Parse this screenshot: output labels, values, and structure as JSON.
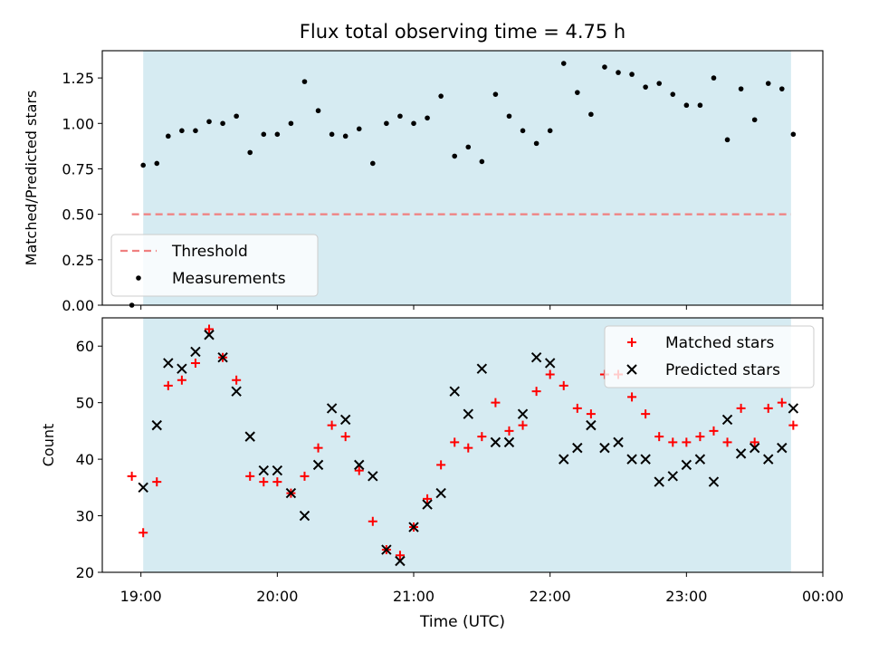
{
  "figure": {
    "title": "Flux total observing time = 4.75 h",
    "xlabel": "Time (UTC)"
  },
  "chart_data": [
    {
      "type": "scatter",
      "title": "Flux total observing time = 4.75 h",
      "xlabel": "",
      "ylabel": "Matched/Predicted stars",
      "xlim": [
        "18:43",
        "00:00"
      ],
      "ylim": [
        0,
        1.4
      ],
      "xticks": [
        "19:00",
        "20:00",
        "21:00",
        "22:00",
        "23:00",
        "00:00"
      ],
      "yticks": [
        "0.00",
        "0.25",
        "0.50",
        "0.75",
        "1.00",
        "1.25"
      ],
      "observing_window": [
        "19:01",
        "23:46"
      ],
      "legend_position": "lower-left",
      "series": [
        {
          "name": "Threshold",
          "style": "dashed-line",
          "color": "#f08080",
          "x": [
            "18:56",
            "23:46"
          ],
          "y": [
            0.5,
            0.5
          ]
        },
        {
          "name": "Measurements",
          "style": "dot",
          "color": "#000000",
          "x": [
            "18:56",
            "19:01",
            "19:07",
            "19:12",
            "19:18",
            "19:24",
            "19:30",
            "19:36",
            "19:42",
            "19:48",
            "19:54",
            "20:00",
            "20:06",
            "20:12",
            "20:18",
            "20:24",
            "20:30",
            "20:36",
            "20:42",
            "20:48",
            "20:54",
            "21:00",
            "21:06",
            "21:12",
            "21:18",
            "21:24",
            "21:30",
            "21:36",
            "21:42",
            "21:48",
            "21:54",
            "22:00",
            "22:06",
            "22:12",
            "22:18",
            "22:24",
            "22:30",
            "22:36",
            "22:42",
            "22:48",
            "22:54",
            "23:00",
            "23:06",
            "23:12",
            "23:18",
            "23:24",
            "23:30",
            "23:36",
            "23:42",
            "23:47"
          ],
          "y": [
            0.0,
            0.77,
            0.78,
            0.93,
            0.96,
            0.96,
            1.01,
            1.0,
            1.04,
            0.84,
            0.94,
            0.94,
            1.0,
            1.23,
            1.07,
            0.94,
            0.93,
            0.97,
            0.78,
            1.0,
            1.04,
            1.0,
            1.03,
            1.15,
            0.82,
            0.87,
            0.79,
            1.16,
            1.04,
            0.96,
            0.89,
            0.96,
            1.33,
            1.17,
            1.05,
            1.31,
            1.28,
            1.27,
            1.2,
            1.22,
            1.16,
            1.1,
            1.1,
            1.25,
            0.91,
            1.19,
            1.02,
            1.22,
            1.19,
            0.94
          ]
        }
      ]
    },
    {
      "type": "scatter",
      "title": "",
      "xlabel": "Time (UTC)",
      "ylabel": "Count",
      "xlim": [
        "18:43",
        "00:00"
      ],
      "ylim": [
        20,
        65
      ],
      "xticks": [
        "19:00",
        "20:00",
        "21:00",
        "22:00",
        "23:00",
        "00:00"
      ],
      "yticks": [
        "20",
        "30",
        "40",
        "50",
        "60"
      ],
      "observing_window": [
        "19:01",
        "23:46"
      ],
      "legend_position": "upper-right",
      "series": [
        {
          "name": "Matched stars",
          "marker": "plus",
          "color": "#ff0000",
          "x": [
            "18:56",
            "19:01",
            "19:07",
            "19:12",
            "19:18",
            "19:24",
            "19:30",
            "19:36",
            "19:42",
            "19:48",
            "19:54",
            "20:00",
            "20:06",
            "20:12",
            "20:18",
            "20:24",
            "20:30",
            "20:36",
            "20:42",
            "20:48",
            "20:54",
            "21:00",
            "21:06",
            "21:12",
            "21:18",
            "21:24",
            "21:30",
            "21:36",
            "21:42",
            "21:48",
            "21:54",
            "22:00",
            "22:06",
            "22:12",
            "22:18",
            "22:24",
            "22:30",
            "22:36",
            "22:42",
            "22:48",
            "22:54",
            "23:00",
            "23:06",
            "23:12",
            "23:18",
            "23:24",
            "23:30",
            "23:36",
            "23:42",
            "23:47"
          ],
          "y": [
            37,
            27,
            36,
            53,
            54,
            57,
            63,
            58,
            54,
            37,
            36,
            36,
            34,
            37,
            42,
            46,
            44,
            38,
            29,
            24,
            23,
            28,
            33,
            39,
            43,
            42,
            44,
            50,
            45,
            46,
            52,
            55,
            53,
            49,
            48,
            55,
            55,
            51,
            48,
            44,
            43,
            43,
            44,
            45,
            43,
            49,
            43,
            49,
            50,
            46
          ]
        },
        {
          "name": "Predicted stars",
          "marker": "x",
          "color": "#000000",
          "x": [
            "19:01",
            "19:07",
            "19:12",
            "19:18",
            "19:24",
            "19:30",
            "19:36",
            "19:42",
            "19:48",
            "19:54",
            "20:00",
            "20:06",
            "20:12",
            "20:18",
            "20:24",
            "20:30",
            "20:36",
            "20:42",
            "20:48",
            "20:54",
            "21:00",
            "21:06",
            "21:12",
            "21:18",
            "21:24",
            "21:30",
            "21:36",
            "21:42",
            "21:48",
            "21:54",
            "22:00",
            "22:06",
            "22:12",
            "22:18",
            "22:24",
            "22:30",
            "22:36",
            "22:42",
            "22:48",
            "22:54",
            "23:00",
            "23:06",
            "23:12",
            "23:18",
            "23:24",
            "23:30",
            "23:36",
            "23:42",
            "23:47"
          ],
          "y": [
            35,
            46,
            57,
            56,
            59,
            62,
            58,
            52,
            44,
            38,
            38,
            34,
            30,
            39,
            49,
            47,
            39,
            37,
            24,
            22,
            28,
            32,
            34,
            52,
            48,
            56,
            43,
            43,
            48,
            58,
            57,
            40,
            42,
            46,
            42,
            43,
            40,
            40,
            36,
            37,
            39,
            40,
            36,
            47,
            41,
            42,
            40,
            42,
            49
          ]
        }
      ]
    }
  ]
}
